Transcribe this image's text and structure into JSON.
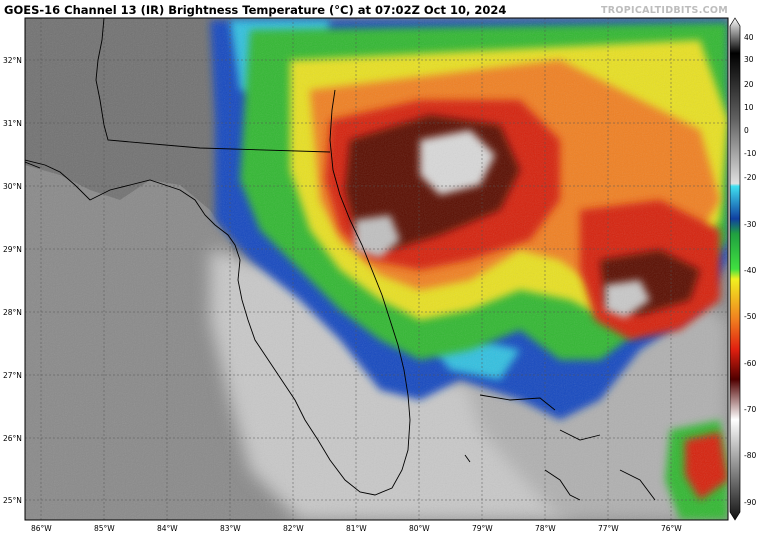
{
  "title": "GOES-16 Channel 13 (IR) Brightness Temperature (°C) at 07:02Z Oct 10, 2024",
  "credit": "TROPICALTIDBITS.COM",
  "lat_labels": [
    "32°N",
    "31°N",
    "30°N",
    "29°N",
    "28°N",
    "27°N",
    "26°N",
    "25°N"
  ],
  "lon_labels": [
    "86°W",
    "85°W",
    "84°W",
    "83°W",
    "82°W",
    "81°W",
    "80°W",
    "79°W",
    "78°W",
    "77°W",
    "76°W"
  ],
  "colorbar": {
    "ticks": [
      "40",
      "30",
      "20",
      "10",
      "0",
      "-10",
      "-20",
      "-30",
      "-40",
      "-50",
      "-60",
      "-70",
      "-80",
      "-90"
    ]
  },
  "colors": {
    "cold_top": "#e8e8e8",
    "red": "#d62010",
    "orange": "#f08020",
    "yellow": "#f0e020",
    "green": "#30c030",
    "blue": "#1040c0",
    "cyan": "#30c0e0",
    "land_gray": "#7a7a7a"
  }
}
